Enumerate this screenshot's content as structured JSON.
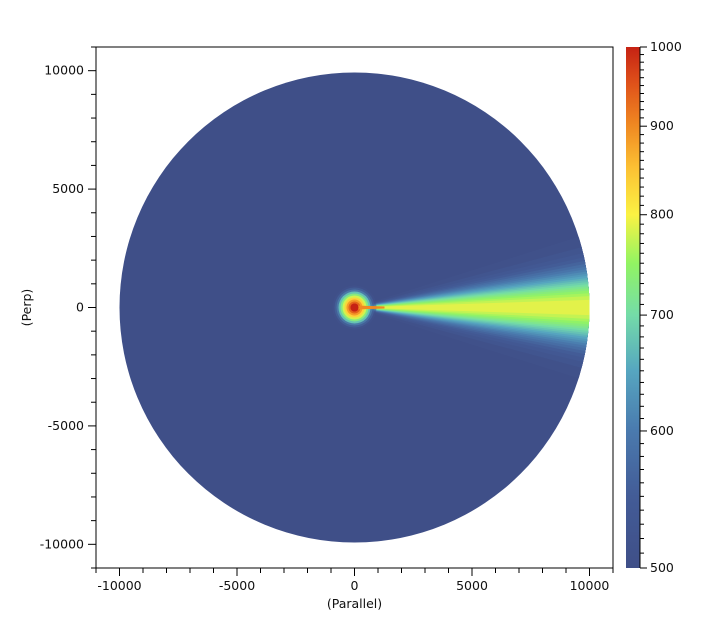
{
  "chart_data": {
    "type": "heatmap",
    "xlabel": "(Parallel)",
    "ylabel": "(Perp)",
    "xlim": [
      -11000,
      11000
    ],
    "ylim": [
      -11000,
      11000
    ],
    "xticks": [
      -10000,
      -5000,
      0,
      5000,
      10000
    ],
    "yticks": [
      10000,
      5000,
      0,
      -5000,
      -10000
    ],
    "xtick_labels": [
      "-10000",
      "-5000",
      "0",
      "5000",
      "10000"
    ],
    "ytick_labels": [
      "10000",
      "5000",
      "0",
      "-5000",
      "-10000"
    ],
    "minor_tick_step": 1000,
    "grid": false,
    "domain_radius": 10000,
    "source": {
      "x": 0,
      "y": 0,
      "value": 1000
    },
    "plume": {
      "direction": "+x",
      "centerline_value_at_edge": 800,
      "half_width_at_edge": 3000,
      "background_value": 500
    },
    "colorbar": {
      "min": 500,
      "max": 1000,
      "scale": "log",
      "ticks": [
        1000,
        900,
        800,
        700,
        600,
        500
      ],
      "tick_labels": [
        "1000",
        "900",
        "800",
        "700",
        "600",
        "500"
      ],
      "minor_tick_step": 10,
      "colormap": [
        {
          "value": 500,
          "color": "#3f4f88"
        },
        {
          "value": 550,
          "color": "#435c97"
        },
        {
          "value": 600,
          "color": "#4a7aae"
        },
        {
          "value": 650,
          "color": "#56a6c0"
        },
        {
          "value": 700,
          "color": "#74dca8"
        },
        {
          "value": 750,
          "color": "#92f462"
        },
        {
          "value": 800,
          "color": "#fbf243"
        },
        {
          "value": 850,
          "color": "#fcc234"
        },
        {
          "value": 900,
          "color": "#f08a22"
        },
        {
          "value": 950,
          "color": "#e0541a"
        },
        {
          "value": 1000,
          "color": "#c62214"
        }
      ]
    }
  }
}
